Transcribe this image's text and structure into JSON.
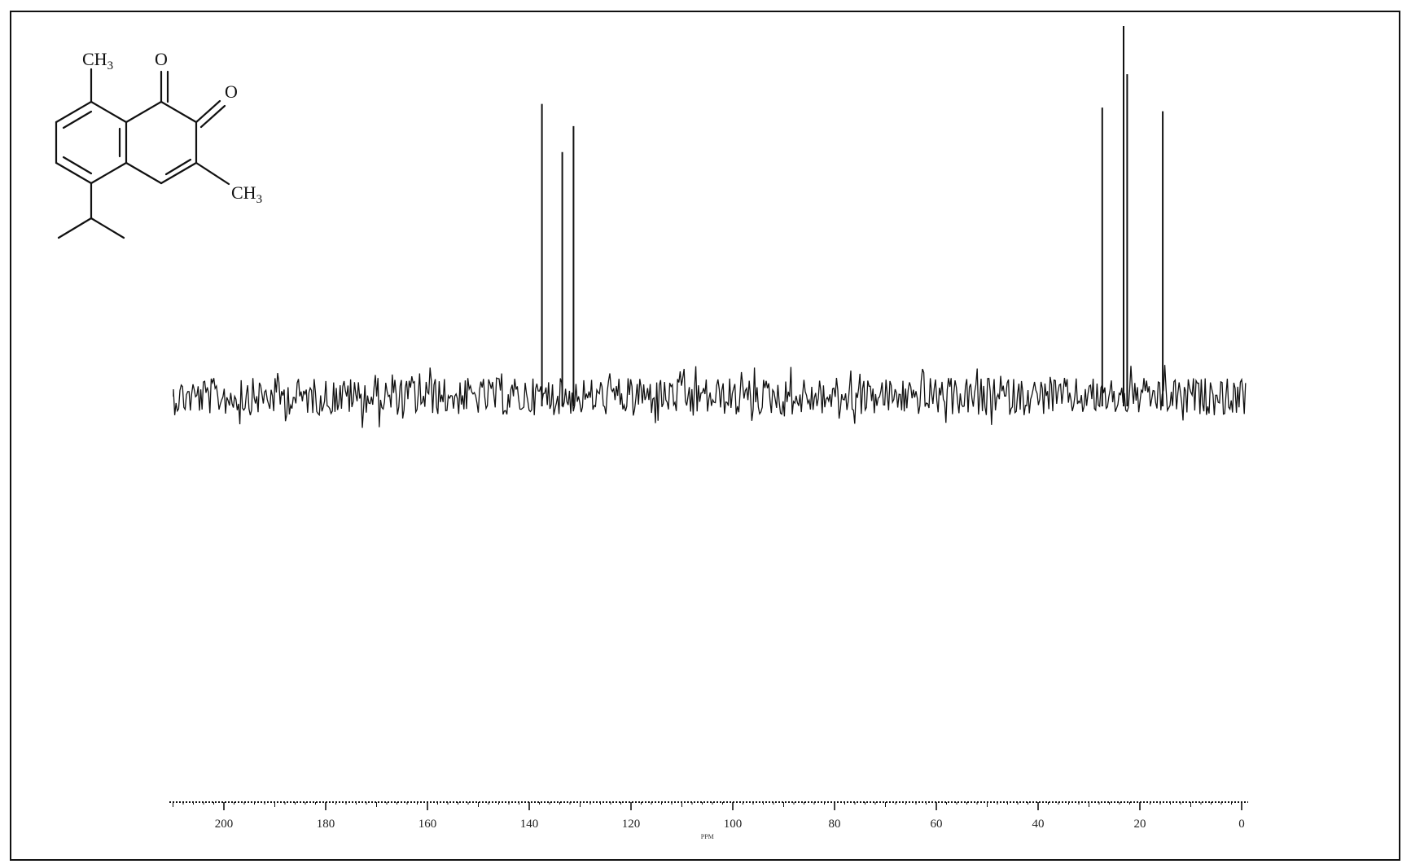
{
  "chart_data": {
    "type": "line",
    "title": "",
    "xlabel": "PPM",
    "ylabel": "",
    "xlim": [
      210,
      0
    ],
    "x_reversed": true,
    "ylim": [
      -0.15,
      1.0
    ],
    "grid": false,
    "legend": "none",
    "ticks": [
      {
        "value": 200,
        "label": "200"
      },
      {
        "value": 180,
        "label": "180"
      },
      {
        "value": 160,
        "label": "160"
      },
      {
        "value": 140,
        "label": "140"
      },
      {
        "value": 120,
        "label": "120"
      },
      {
        "value": 100,
        "label": "100"
      },
      {
        "value": 80,
        "label": "80"
      },
      {
        "value": 60,
        "label": "60"
      },
      {
        "value": 40,
        "label": "40"
      },
      {
        "value": 20,
        "label": "20"
      },
      {
        "value": 0,
        "label": "0"
      }
    ],
    "peaks": [
      {
        "ppm": 137.5,
        "intensity": 0.79
      },
      {
        "ppm": 133.5,
        "intensity": 0.66
      },
      {
        "ppm": 131.3,
        "intensity": 0.73
      },
      {
        "ppm": 27.4,
        "intensity": 0.78
      },
      {
        "ppm": 23.2,
        "intensity": 1.0
      },
      {
        "ppm": 22.5,
        "intensity": 0.87
      },
      {
        "ppm": 15.5,
        "intensity": 0.77
      }
    ]
  },
  "structure": {
    "labels": {
      "methyl_top": {
        "main": "CH",
        "sub": "3"
      },
      "methyl_right": {
        "main": "CH",
        "sub": "3"
      },
      "oxygen_1": "O",
      "oxygen_2": "O"
    }
  }
}
